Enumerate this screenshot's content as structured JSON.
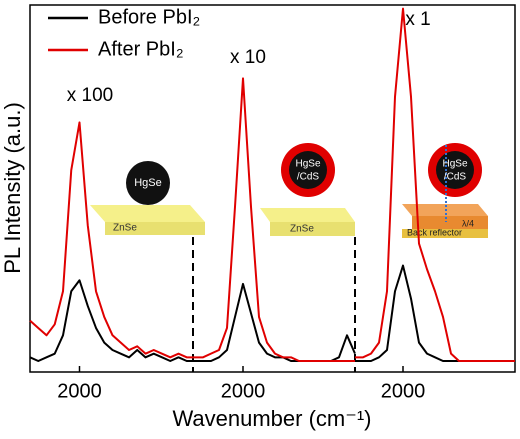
{
  "chart_data": {
    "type": "line",
    "xlabel": "Wavenumber (cm⁻¹)",
    "ylabel": "PL Intensity (a.u.)",
    "ylim": [
      0,
      100
    ],
    "legend": [
      {
        "name": "Before PbI₂",
        "color": "#000000"
      },
      {
        "name": "After PbI₂",
        "color": "#e00000"
      }
    ],
    "panels": [
      {
        "annotation": "x 100",
        "xlim": [
          1700,
          2700
        ],
        "xticks": [
          2000
        ],
        "inset": {
          "particle": [
            "HgSe"
          ],
          "substrate": "ZnSe"
        },
        "x": [
          1700,
          1750,
          1800,
          1850,
          1900,
          1950,
          2000,
          2050,
          2100,
          2150,
          2200,
          2250,
          2300,
          2350,
          2400,
          2450,
          2500,
          2550,
          2600,
          2650,
          2700
        ],
        "series": [
          {
            "values": [
              4,
              3,
              4,
              5,
              10,
              22,
              25,
              18,
              12,
              8,
              6,
              5,
              4,
              6,
              4,
              5,
              4,
              3,
              4,
              3,
              3
            ]
          },
          {
            "values": [
              14,
              12,
              10,
              13,
              22,
              55,
              68,
              40,
              22,
              15,
              10,
              8,
              6,
              7,
              5,
              6,
              5,
              4,
              5,
              4,
              4
            ]
          }
        ]
      },
      {
        "annotation": "x 10",
        "xlim": [
          1700,
          2700
        ],
        "xticks": [
          2000
        ],
        "inset": {
          "particle": [
            "HgSe",
            "/CdS"
          ],
          "substrate": "ZnSe"
        },
        "x": [
          1700,
          1750,
          1800,
          1850,
          1900,
          1950,
          2000,
          2050,
          2100,
          2150,
          2200,
          2250,
          2300,
          2350,
          2400,
          2450,
          2500,
          2550,
          2600,
          2650,
          2700
        ],
        "series": [
          {
            "values": [
              3,
              3,
              3,
              4,
              6,
              15,
              24,
              16,
              8,
              5,
              4,
              4,
              3,
              3,
              3,
              3,
              3,
              3,
              4,
              10,
              5
            ]
          },
          {
            "values": [
              4,
              4,
              5,
              6,
              12,
              45,
              80,
              45,
              15,
              8,
              5,
              4,
              4,
              3,
              3,
              3,
              3,
              3,
              3,
              3,
              3
            ]
          }
        ]
      },
      {
        "annotation": "x 1",
        "xlim": [
          1700,
          2700
        ],
        "xticks": [
          2000
        ],
        "inset": {
          "particle": [
            "HgSe",
            "/CdS"
          ],
          "spacer": "λ/4",
          "substrate": "Back reflector"
        },
        "x": [
          1700,
          1750,
          1800,
          1850,
          1900,
          1950,
          2000,
          2050,
          2100,
          2150,
          2200,
          2250,
          2300,
          2350,
          2400,
          2450,
          2500,
          2550,
          2600,
          2650,
          2700
        ],
        "series": [
          {
            "values": [
              3,
              3,
              3,
              4,
              6,
              22,
              29,
              20,
              8,
              5,
              4,
              3,
              3,
              3,
              3,
              3,
              3,
              3,
              3,
              3,
              3
            ]
          },
          {
            "values": [
              4,
              4,
              5,
              8,
              22,
              75,
              99,
              75,
              35,
              28,
              22,
              15,
              5,
              3,
              3,
              3,
              3,
              3,
              3,
              3,
              3
            ]
          }
        ]
      }
    ]
  }
}
